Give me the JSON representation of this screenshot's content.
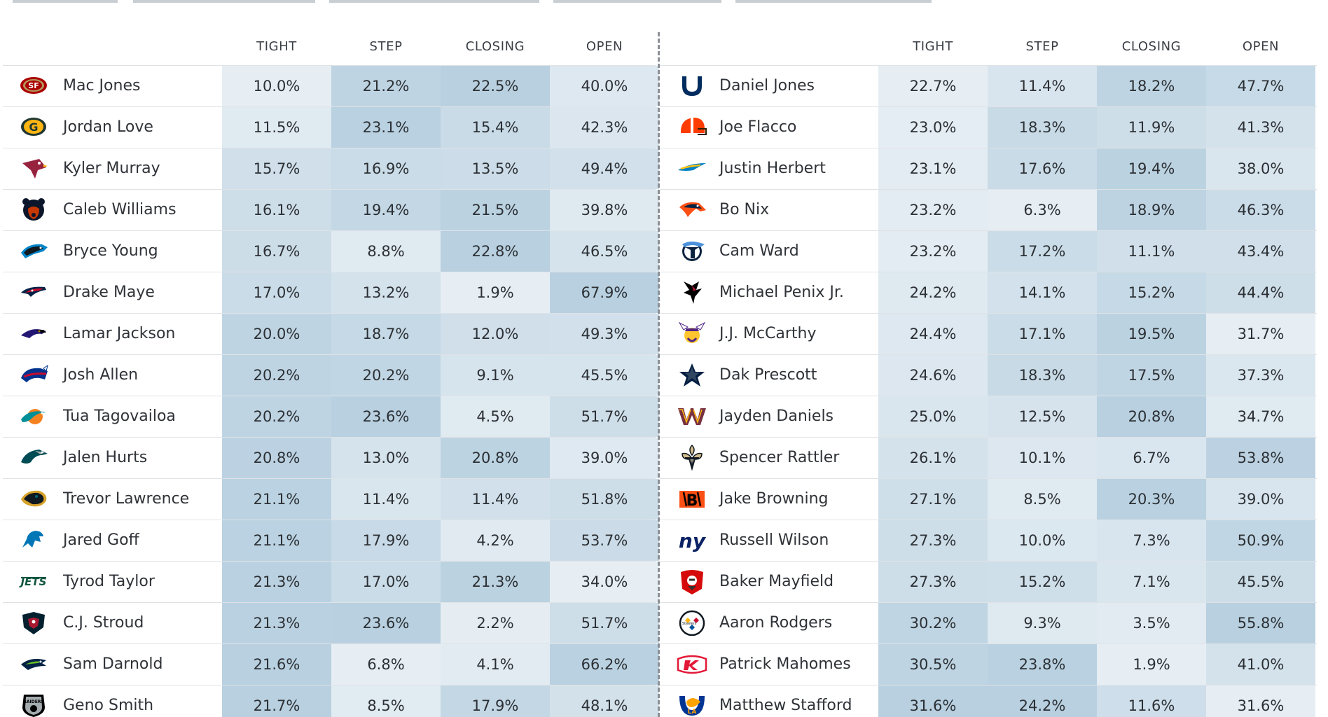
{
  "chart_data": {
    "type": "table",
    "columns": [
      "TIGHT",
      "STEP",
      "CLOSING",
      "OPEN"
    ],
    "heat_color_low": "#eef3f7",
    "heat_color_high": "#b8d0e0",
    "tables": [
      {
        "rows": [
          {
            "team_icon": "49ers-logo-icon",
            "name": "Mac Jones",
            "values": [
              "10.0%",
              "21.2%",
              "22.5%",
              "40.0%"
            ]
          },
          {
            "team_icon": "packers-logo-icon",
            "name": "Jordan Love",
            "values": [
              "11.5%",
              "23.1%",
              "15.4%",
              "42.3%"
            ]
          },
          {
            "team_icon": "cardinals-logo-icon",
            "name": "Kyler Murray",
            "values": [
              "15.7%",
              "16.9%",
              "13.5%",
              "49.4%"
            ]
          },
          {
            "team_icon": "bears-logo-icon",
            "name": "Caleb Williams",
            "values": [
              "16.1%",
              "19.4%",
              "21.5%",
              "39.8%"
            ]
          },
          {
            "team_icon": "panthers-logo-icon",
            "name": "Bryce Young",
            "values": [
              "16.7%",
              "8.8%",
              "22.8%",
              "46.5%"
            ]
          },
          {
            "team_icon": "patriots-logo-icon",
            "name": "Drake Maye",
            "values": [
              "17.0%",
              "13.2%",
              "1.9%",
              "67.9%"
            ]
          },
          {
            "team_icon": "ravens-logo-icon",
            "name": "Lamar Jackson",
            "values": [
              "20.0%",
              "18.7%",
              "12.0%",
              "49.3%"
            ]
          },
          {
            "team_icon": "bills-logo-icon",
            "name": "Josh Allen",
            "values": [
              "20.2%",
              "20.2%",
              "9.1%",
              "45.5%"
            ]
          },
          {
            "team_icon": "dolphins-logo-icon",
            "name": "Tua Tagovailoa",
            "values": [
              "20.2%",
              "23.6%",
              "4.5%",
              "51.7%"
            ]
          },
          {
            "team_icon": "eagles-logo-icon",
            "name": "Jalen Hurts",
            "values": [
              "20.8%",
              "13.0%",
              "20.8%",
              "39.0%"
            ]
          },
          {
            "team_icon": "jaguars-logo-icon",
            "name": "Trevor Lawrence",
            "values": [
              "21.1%",
              "11.4%",
              "11.4%",
              "51.8%"
            ]
          },
          {
            "team_icon": "lions-logo-icon",
            "name": "Jared Goff",
            "values": [
              "21.1%",
              "17.9%",
              "4.2%",
              "53.7%"
            ]
          },
          {
            "team_icon": "jets-logo-icon",
            "name": "Tyrod Taylor",
            "values": [
              "21.3%",
              "17.0%",
              "21.3%",
              "34.0%"
            ]
          },
          {
            "team_icon": "texans-logo-icon",
            "name": "C.J. Stroud",
            "values": [
              "21.3%",
              "23.6%",
              "2.2%",
              "51.7%"
            ]
          },
          {
            "team_icon": "seahawks-logo-icon",
            "name": "Sam Darnold",
            "values": [
              "21.6%",
              "6.8%",
              "4.1%",
              "66.2%"
            ]
          },
          {
            "team_icon": "raiders-logo-icon",
            "name": "Geno Smith",
            "values": [
              "21.7%",
              "8.5%",
              "17.9%",
              "48.1%"
            ]
          }
        ]
      },
      {
        "rows": [
          {
            "team_icon": "colts-logo-icon",
            "name": "Daniel Jones",
            "values": [
              "22.7%",
              "11.4%",
              "18.2%",
              "47.7%"
            ]
          },
          {
            "team_icon": "browns-logo-icon",
            "name": "Joe Flacco",
            "values": [
              "23.0%",
              "18.3%",
              "11.9%",
              "41.3%"
            ]
          },
          {
            "team_icon": "chargers-logo-icon",
            "name": "Justin Herbert",
            "values": [
              "23.1%",
              "17.6%",
              "19.4%",
              "38.0%"
            ]
          },
          {
            "team_icon": "broncos-logo-icon",
            "name": "Bo Nix",
            "values": [
              "23.2%",
              "6.3%",
              "18.9%",
              "46.3%"
            ]
          },
          {
            "team_icon": "titans-logo-icon",
            "name": "Cam Ward",
            "values": [
              "23.2%",
              "17.2%",
              "11.1%",
              "43.4%"
            ]
          },
          {
            "team_icon": "falcons-logo-icon",
            "name": "Michael Penix Jr.",
            "values": [
              "24.2%",
              "14.1%",
              "15.2%",
              "44.4%"
            ]
          },
          {
            "team_icon": "vikings-logo-icon",
            "name": "J.J. McCarthy",
            "values": [
              "24.4%",
              "17.1%",
              "19.5%",
              "31.7%"
            ]
          },
          {
            "team_icon": "cowboys-logo-icon",
            "name": "Dak Prescott",
            "values": [
              "24.6%",
              "18.3%",
              "17.5%",
              "37.3%"
            ]
          },
          {
            "team_icon": "commanders-logo-icon",
            "name": "Jayden Daniels",
            "values": [
              "25.0%",
              "12.5%",
              "20.8%",
              "34.7%"
            ]
          },
          {
            "team_icon": "saints-logo-icon",
            "name": "Spencer Rattler",
            "values": [
              "26.1%",
              "10.1%",
              "6.7%",
              "53.8%"
            ]
          },
          {
            "team_icon": "bengals-logo-icon",
            "name": "Jake Browning",
            "values": [
              "27.1%",
              "8.5%",
              "20.3%",
              "39.0%"
            ]
          },
          {
            "team_icon": "giants-logo-icon",
            "name": "Russell Wilson",
            "values": [
              "27.3%",
              "10.0%",
              "7.3%",
              "50.9%"
            ]
          },
          {
            "team_icon": "buccaneers-logo-icon",
            "name": "Baker Mayfield",
            "values": [
              "27.3%",
              "15.2%",
              "7.1%",
              "45.5%"
            ]
          },
          {
            "team_icon": "steelers-logo-icon",
            "name": "Aaron Rodgers",
            "values": [
              "30.2%",
              "9.3%",
              "3.5%",
              "55.8%"
            ]
          },
          {
            "team_icon": "chiefs-logo-icon",
            "name": "Patrick Mahomes",
            "values": [
              "30.5%",
              "23.8%",
              "1.9%",
              "41.0%"
            ]
          },
          {
            "team_icon": "rams-logo-icon",
            "name": "Matthew Stafford",
            "values": [
              "31.6%",
              "24.2%",
              "11.6%",
              "31.6%"
            ]
          }
        ]
      }
    ]
  }
}
